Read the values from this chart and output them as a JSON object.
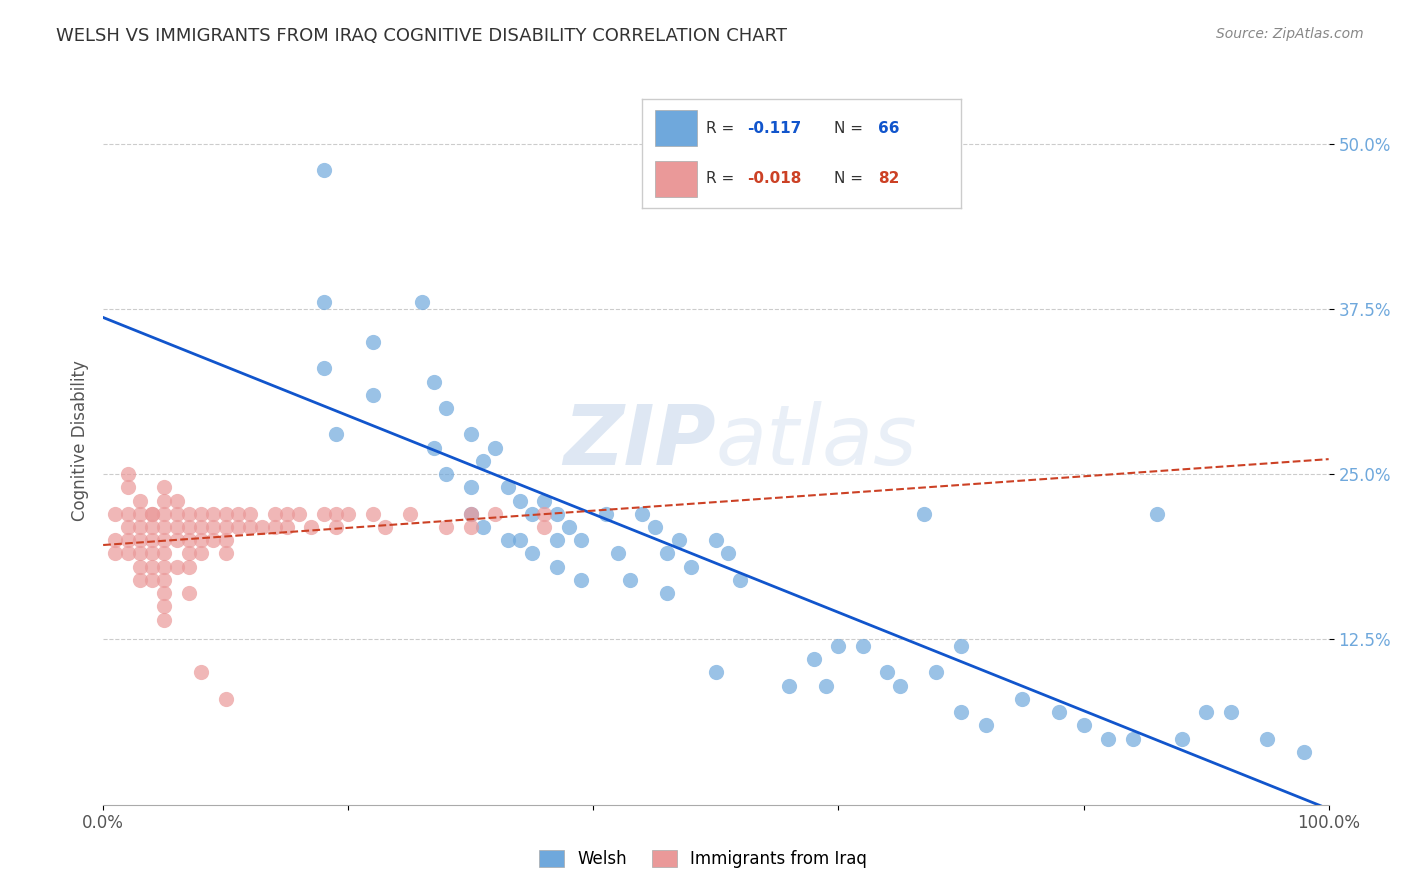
{
  "title": "WELSH VS IMMIGRANTS FROM IRAQ COGNITIVE DISABILITY CORRELATION CHART",
  "source": "Source: ZipAtlas.com",
  "ylabel": "Cognitive Disability",
  "xlim": [
    0.0,
    1.0
  ],
  "ylim": [
    0.0,
    0.55
  ],
  "yticks": [
    0.125,
    0.25,
    0.375,
    0.5
  ],
  "ytick_labels": [
    "12.5%",
    "25.0%",
    "37.5%",
    "50.0%"
  ],
  "xticks": [
    0.0,
    0.2,
    0.4,
    0.6,
    0.8,
    1.0
  ],
  "xtick_labels": [
    "0.0%",
    "",
    "",
    "",
    "",
    "100.0%"
  ],
  "legend_r_welsh": "-0.117",
  "legend_n_welsh": "66",
  "legend_r_iraq": "-0.018",
  "legend_n_iraq": "82",
  "welsh_color": "#6fa8dc",
  "iraq_color": "#ea9999",
  "welsh_line_color": "#1155cc",
  "iraq_line_color": "#cc4125",
  "background_color": "#ffffff",
  "watermark_zip": "ZIP",
  "watermark_atlas": "atlas",
  "welsh_x": [
    0.18,
    0.18,
    0.18,
    0.19,
    0.22,
    0.22,
    0.26,
    0.27,
    0.27,
    0.28,
    0.28,
    0.3,
    0.3,
    0.3,
    0.31,
    0.31,
    0.32,
    0.33,
    0.33,
    0.34,
    0.34,
    0.35,
    0.35,
    0.36,
    0.37,
    0.37,
    0.37,
    0.38,
    0.39,
    0.39,
    0.41,
    0.42,
    0.43,
    0.44,
    0.45,
    0.46,
    0.46,
    0.47,
    0.48,
    0.5,
    0.5,
    0.51,
    0.52,
    0.56,
    0.58,
    0.59,
    0.6,
    0.62,
    0.64,
    0.65,
    0.67,
    0.68,
    0.7,
    0.7,
    0.72,
    0.75,
    0.78,
    0.8,
    0.82,
    0.84,
    0.86,
    0.88,
    0.9,
    0.92,
    0.95,
    0.98
  ],
  "welsh_y": [
    0.48,
    0.38,
    0.33,
    0.28,
    0.35,
    0.31,
    0.38,
    0.32,
    0.27,
    0.3,
    0.25,
    0.28,
    0.24,
    0.22,
    0.26,
    0.21,
    0.27,
    0.24,
    0.2,
    0.23,
    0.2,
    0.22,
    0.19,
    0.23,
    0.22,
    0.2,
    0.18,
    0.21,
    0.2,
    0.17,
    0.22,
    0.19,
    0.17,
    0.22,
    0.21,
    0.19,
    0.16,
    0.2,
    0.18,
    0.2,
    0.1,
    0.19,
    0.17,
    0.09,
    0.11,
    0.09,
    0.12,
    0.12,
    0.1,
    0.09,
    0.22,
    0.1,
    0.12,
    0.07,
    0.06,
    0.08,
    0.07,
    0.06,
    0.05,
    0.05,
    0.22,
    0.05,
    0.07,
    0.07,
    0.05,
    0.04
  ],
  "iraq_x": [
    0.01,
    0.01,
    0.01,
    0.02,
    0.02,
    0.02,
    0.02,
    0.02,
    0.02,
    0.03,
    0.03,
    0.03,
    0.03,
    0.03,
    0.03,
    0.03,
    0.04,
    0.04,
    0.04,
    0.04,
    0.04,
    0.04,
    0.04,
    0.05,
    0.05,
    0.05,
    0.05,
    0.05,
    0.05,
    0.05,
    0.05,
    0.05,
    0.05,
    0.05,
    0.06,
    0.06,
    0.06,
    0.06,
    0.06,
    0.07,
    0.07,
    0.07,
    0.07,
    0.07,
    0.07,
    0.08,
    0.08,
    0.08,
    0.08,
    0.09,
    0.09,
    0.09,
    0.1,
    0.1,
    0.1,
    0.1,
    0.11,
    0.11,
    0.12,
    0.12,
    0.13,
    0.14,
    0.14,
    0.15,
    0.15,
    0.16,
    0.17,
    0.18,
    0.19,
    0.19,
    0.2,
    0.22,
    0.23,
    0.25,
    0.28,
    0.3,
    0.3,
    0.32,
    0.36,
    0.36,
    0.08,
    0.1
  ],
  "iraq_y": [
    0.22,
    0.2,
    0.19,
    0.25,
    0.24,
    0.22,
    0.21,
    0.2,
    0.19,
    0.23,
    0.22,
    0.21,
    0.2,
    0.19,
    0.18,
    0.17,
    0.22,
    0.22,
    0.21,
    0.2,
    0.19,
    0.18,
    0.17,
    0.24,
    0.23,
    0.22,
    0.21,
    0.2,
    0.19,
    0.18,
    0.17,
    0.16,
    0.15,
    0.14,
    0.23,
    0.22,
    0.21,
    0.2,
    0.18,
    0.22,
    0.21,
    0.2,
    0.19,
    0.18,
    0.16,
    0.22,
    0.21,
    0.2,
    0.19,
    0.22,
    0.21,
    0.2,
    0.22,
    0.21,
    0.2,
    0.19,
    0.22,
    0.21,
    0.22,
    0.21,
    0.21,
    0.22,
    0.21,
    0.22,
    0.21,
    0.22,
    0.21,
    0.22,
    0.22,
    0.21,
    0.22,
    0.22,
    0.21,
    0.22,
    0.21,
    0.22,
    0.21,
    0.22,
    0.21,
    0.22,
    0.1,
    0.08
  ]
}
